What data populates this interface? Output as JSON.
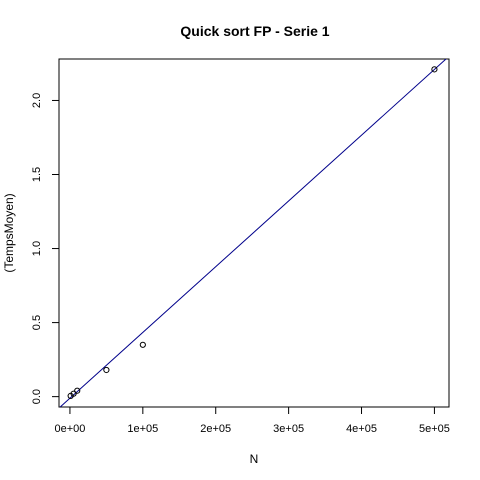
{
  "chart_data": {
    "type": "scatter",
    "title": "Quick sort FP - Serie 1",
    "xlabel": "N",
    "ylabel": "(TempsMoyen)",
    "xlim": [
      -15000,
      520000
    ],
    "ylim": [
      -0.07,
      2.28
    ],
    "x_ticks": [
      0,
      100000,
      200000,
      300000,
      400000,
      500000
    ],
    "x_tick_labels": [
      "0e+00",
      "1e+05",
      "2e+05",
      "3e+05",
      "4e+05",
      "5e+05"
    ],
    "y_ticks": [
      0.0,
      0.5,
      1.0,
      1.5,
      2.0
    ],
    "y_tick_labels": [
      "0.0",
      "0.5",
      "1.0",
      "1.5",
      "2.0"
    ],
    "points": [
      {
        "x": 1000,
        "y": 0.005
      },
      {
        "x": 5000,
        "y": 0.02
      },
      {
        "x": 10000,
        "y": 0.04
      },
      {
        "x": 50000,
        "y": 0.18
      },
      {
        "x": 100000,
        "y": 0.35
      },
      {
        "x": 500000,
        "y": 2.21
      }
    ],
    "fit_line": {
      "intercept": -0.0105,
      "slope": 4.44e-06
    },
    "point_style": "open-circle",
    "colors": {
      "points": "#000000",
      "fit_line": "#00008B",
      "box": "#000000"
    },
    "grid": false,
    "legend": "none"
  }
}
